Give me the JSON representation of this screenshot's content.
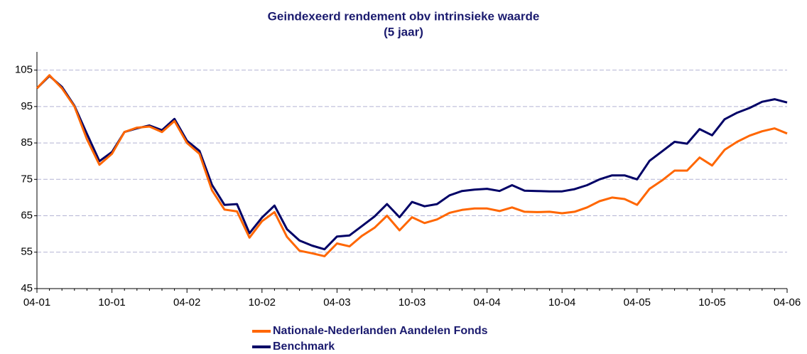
{
  "chart_data": {
    "type": "line",
    "title": "Geindexeerd rendement obv intrinsieke waarde",
    "subtitle": "(5 jaar)",
    "categories": [
      "04-01",
      null,
      null,
      null,
      null,
      null,
      "10-01",
      null,
      null,
      null,
      null,
      null,
      "04-02",
      null,
      null,
      null,
      null,
      null,
      "10-02",
      null,
      null,
      null,
      null,
      null,
      "04-03",
      null,
      null,
      null,
      null,
      null,
      "10-03",
      null,
      null,
      null,
      null,
      null,
      "04-04",
      null,
      null,
      null,
      null,
      null,
      "10-04",
      null,
      null,
      null,
      null,
      null,
      "04-05",
      null,
      null,
      null,
      null,
      null,
      "10-05",
      null,
      null,
      null,
      null,
      null,
      "04-06"
    ],
    "series": [
      {
        "name": "Nationale-Nederlanden Aandelen Fonds",
        "color": "#ff6600",
        "values": [
          100,
          103.6,
          100,
          95,
          86,
          79,
          82,
          88,
          89.2,
          89.5,
          88,
          91,
          85,
          82,
          72,
          66.7,
          66.2,
          59,
          63.5,
          66,
          59.2,
          55.4,
          54.7,
          53.9,
          57.4,
          56.6,
          59.5,
          61.7,
          65,
          61,
          64.6,
          63,
          64,
          65.8,
          66.6,
          67,
          67,
          66.3,
          67.3,
          66.1,
          66,
          66.1,
          65.7,
          66.1,
          67.3,
          69,
          70,
          69.6,
          68,
          72.4,
          74.7,
          77.4,
          77.4,
          81,
          78.8,
          83.1,
          85.3,
          87,
          88.2,
          89,
          87.6
        ]
      },
      {
        "name": "Benchmark",
        "color": "#000066",
        "values": [
          100,
          103.4,
          100.4,
          95.2,
          87.5,
          80,
          82.5,
          88,
          89,
          89.8,
          88.5,
          91.6,
          85.6,
          82.8,
          73.5,
          68,
          68.2,
          60.2,
          64.5,
          67.8,
          61.3,
          58.2,
          56.8,
          55.8,
          59.3,
          59.6,
          62.2,
          64.8,
          68.2,
          64.6,
          68.8,
          67.6,
          68.2,
          70.6,
          71.8,
          72.2,
          72.4,
          71.8,
          73.4,
          71.9,
          71.8,
          71.7,
          71.7,
          72.3,
          73.4,
          75,
          76.1,
          76.1,
          75,
          80.1,
          82.7,
          85.3,
          84.8,
          88.8,
          87.1,
          91.5,
          93.3,
          94.6,
          96.3,
          97,
          96.1
        ]
      }
    ],
    "ylim": [
      45,
      110
    ],
    "yticks": [
      45,
      55,
      65,
      75,
      85,
      95,
      105
    ],
    "grid": true
  }
}
